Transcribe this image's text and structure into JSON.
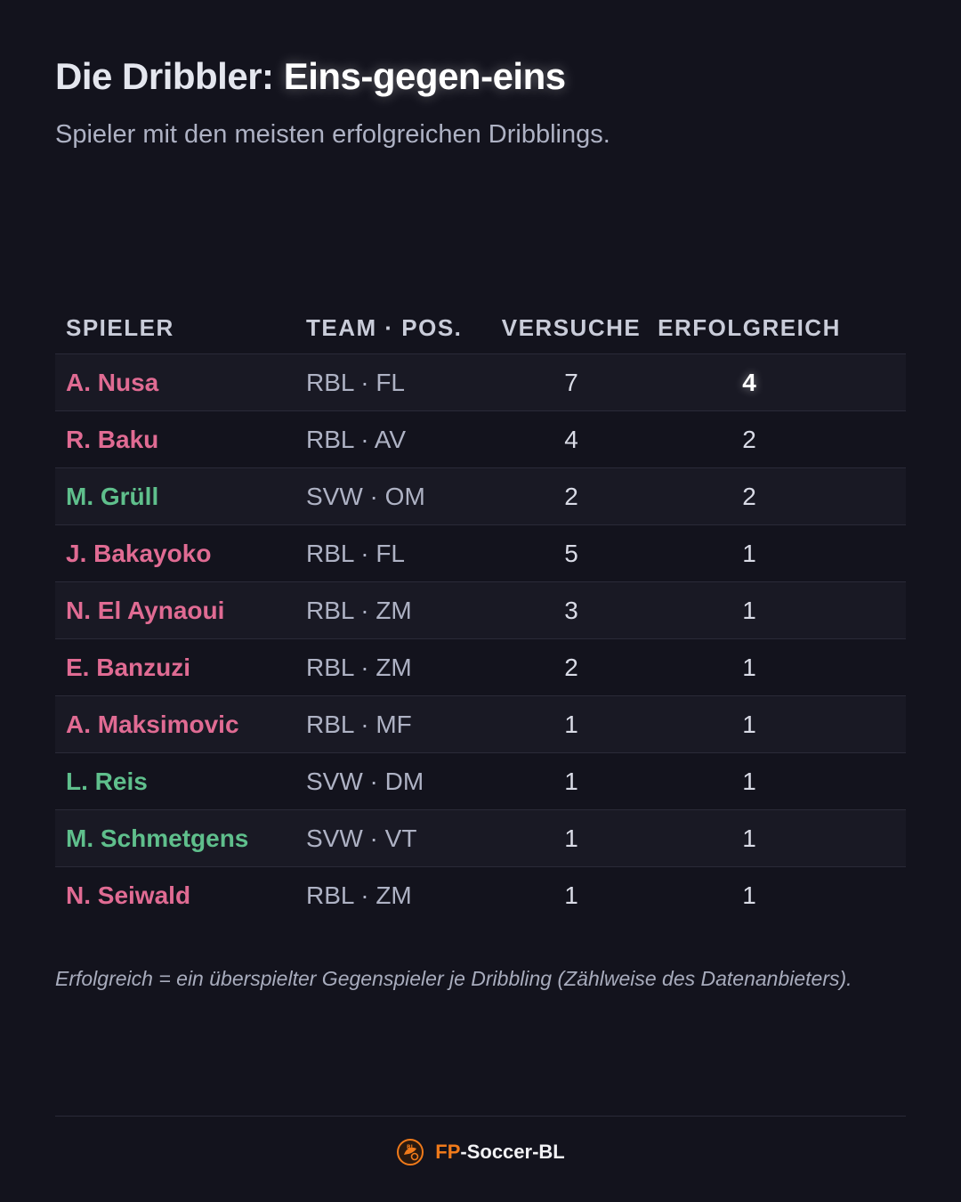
{
  "header": {
    "title_prefix": "Die Dribbler: ",
    "title_highlight": "Eins-gegen-eins",
    "subtitle": "Spieler mit den meisten erfolgreichen Dribblings."
  },
  "table": {
    "columns": [
      "SPIELER",
      "TEAM · POS.",
      "VERSUCHE",
      "ERFOLGREICH"
    ],
    "rows": [
      {
        "player": "A. Nusa",
        "team_pos": "RBL · FL",
        "attempts": "7",
        "successful": "4",
        "club": "RBL",
        "highlight": true
      },
      {
        "player": "R. Baku",
        "team_pos": "RBL · AV",
        "attempts": "4",
        "successful": "2",
        "club": "RBL",
        "highlight": false
      },
      {
        "player": "M. Grüll",
        "team_pos": "SVW · OM",
        "attempts": "2",
        "successful": "2",
        "club": "SVW",
        "highlight": false
      },
      {
        "player": "J. Bakayoko",
        "team_pos": "RBL · FL",
        "attempts": "5",
        "successful": "1",
        "club": "RBL",
        "highlight": false
      },
      {
        "player": "N. El Aynaoui",
        "team_pos": "RBL · ZM",
        "attempts": "3",
        "successful": "1",
        "club": "RBL",
        "highlight": false
      },
      {
        "player": "E. Banzuzi",
        "team_pos": "RBL · ZM",
        "attempts": "2",
        "successful": "1",
        "club": "RBL",
        "highlight": false
      },
      {
        "player": "A. Maksimovic",
        "team_pos": "RBL · MF",
        "attempts": "1",
        "successful": "1",
        "club": "RBL",
        "highlight": false
      },
      {
        "player": "L. Reis",
        "team_pos": "SVW · DM",
        "attempts": "1",
        "successful": "1",
        "club": "SVW",
        "highlight": false
      },
      {
        "player": "M. Schmetgens",
        "team_pos": "SVW · VT",
        "attempts": "1",
        "successful": "1",
        "club": "SVW",
        "highlight": false
      },
      {
        "player": "N. Seiwald",
        "team_pos": "RBL · ZM",
        "attempts": "1",
        "successful": "1",
        "club": "RBL",
        "highlight": false
      }
    ]
  },
  "footnote": "Erfolgreich = ein überspielter Gegenspieler je Dribbling (Zählweise des Datenanbieters).",
  "footer": {
    "brand_prefix": "FP",
    "brand_suffix": "-Soccer-BL",
    "logo_icon": "fp-soccer-bl-logo-icon"
  },
  "colors": {
    "background": "#13131d",
    "rbl_name": "#e06b93",
    "svw_name": "#5fbf8c",
    "brand_accent": "#f07a1a"
  }
}
